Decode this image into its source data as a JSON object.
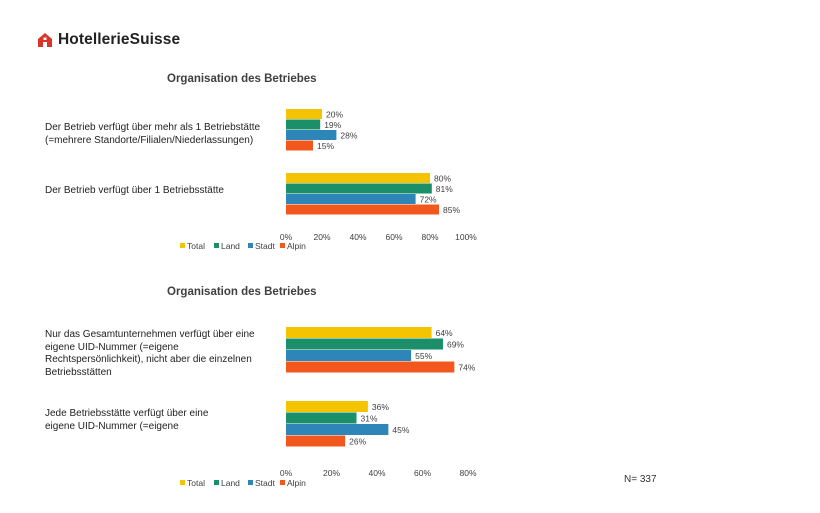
{
  "brand": {
    "name": "HotellerieSuisse",
    "logo_icon": "hotel-house-icon",
    "logo_color": "#d9362b"
  },
  "colors": {
    "Total": "#f5c400",
    "Land": "#1b8f6a",
    "Stadt": "#2e86b8",
    "Alpin": "#f2571e"
  },
  "sample_note": "N= 337",
  "chart_data": [
    {
      "type": "bar",
      "orientation": "horizontal",
      "title": "Organisation des Betriebes",
      "categories": [
        "Der Betrieb verfügt über mehr als 1 Betriebstätte (=mehrere Standorte/Filialen/Niederlassungen)",
        "Der Betrieb verfügt über 1 Betriebsstätte"
      ],
      "series": [
        {
          "name": "Total",
          "values": [
            20,
            80
          ]
        },
        {
          "name": "Land",
          "values": [
            19,
            81
          ]
        },
        {
          "name": "Stadt",
          "values": [
            28,
            72
          ]
        },
        {
          "name": "Alpin",
          "values": [
            15,
            85
          ]
        }
      ],
      "xlim": [
        0,
        100
      ],
      "xticks": [
        "0%",
        "20%",
        "40%",
        "60%",
        "80%",
        "100%"
      ],
      "value_suffix": "%",
      "legend": "bottom-left",
      "grid": false
    },
    {
      "type": "bar",
      "orientation": "horizontal",
      "title": "Organisation des Betriebes",
      "categories": [
        "Nur das Gesamtunternehmen verfügt über eine eigene UID-Nummer (=eigene Rechtspersönlichkeit), nicht aber die einzelnen Betriebsstätten",
        "Jede Betriebsstätte verfügt über eine eigene UID-Nummer (=eigene"
      ],
      "series": [
        {
          "name": "Total",
          "values": [
            64,
            36
          ]
        },
        {
          "name": "Land",
          "values": [
            69,
            31
          ]
        },
        {
          "name": "Stadt",
          "values": [
            55,
            45
          ]
        },
        {
          "name": "Alpin",
          "values": [
            74,
            26
          ]
        }
      ],
      "xlim": [
        0,
        80
      ],
      "xticks": [
        "0%",
        "20%",
        "40%",
        "60%",
        "80%"
      ],
      "value_suffix": "%",
      "legend": "bottom-left",
      "grid": false
    }
  ]
}
